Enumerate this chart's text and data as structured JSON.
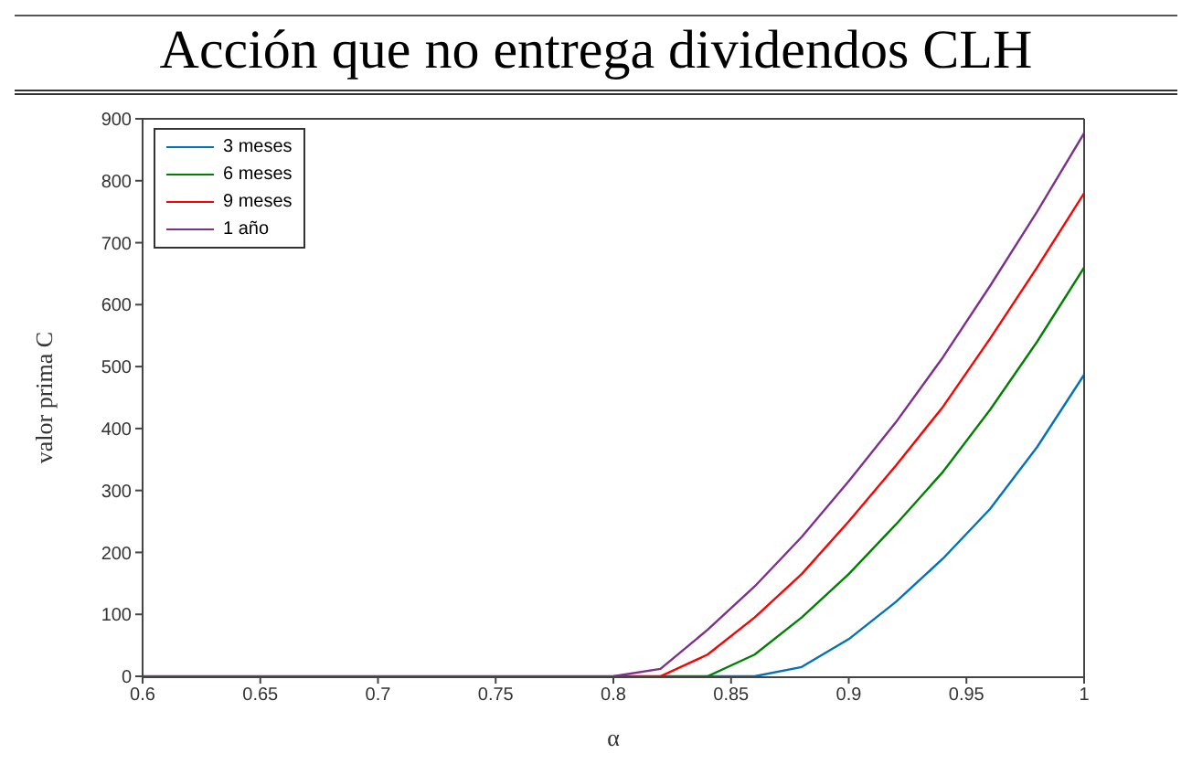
{
  "chart_data": {
    "type": "line",
    "title": "Acción que no entrega dividendos CLH",
    "xlabel": "α",
    "ylabel": "valor prima C",
    "x": [
      0.6,
      0.62,
      0.64,
      0.66,
      0.68,
      0.7,
      0.72,
      0.74,
      0.76,
      0.78,
      0.8,
      0.82,
      0.84,
      0.86,
      0.88,
      0.9,
      0.92,
      0.94,
      0.96,
      0.98,
      1
    ],
    "series": [
      {
        "name": "3 meses",
        "color": "#0072bd",
        "values": [
          null,
          null,
          null,
          null,
          null,
          null,
          null,
          null,
          null,
          null,
          null,
          null,
          0,
          0,
          15,
          60,
          120,
          190,
          270,
          370,
          487
        ]
      },
      {
        "name": "6 meses",
        "color": "#008000",
        "values": [
          null,
          null,
          null,
          null,
          null,
          null,
          null,
          null,
          null,
          null,
          null,
          0,
          0,
          35,
          95,
          165,
          245,
          330,
          430,
          540,
          660
        ]
      },
      {
        "name": "9 meses",
        "color": "#ff0000",
        "values": [
          null,
          null,
          null,
          null,
          null,
          null,
          null,
          null,
          null,
          null,
          0,
          0,
          35,
          95,
          165,
          250,
          340,
          435,
          545,
          660,
          780
        ]
      },
      {
        "name": "1 año",
        "color": "#7e2f8e",
        "values": [
          0,
          0,
          0,
          0,
          0,
          0,
          0,
          0,
          0,
          0,
          0,
          12,
          75,
          145,
          225,
          315,
          410,
          515,
          630,
          750,
          877
        ]
      }
    ],
    "xlim": [
      0.6,
      1
    ],
    "xticks": [
      0.6,
      0.65,
      0.7,
      0.75,
      0.8,
      0.85,
      0.9,
      0.95,
      1
    ],
    "ylim": [
      0,
      900
    ],
    "yticks": [
      0,
      100,
      200,
      300,
      400,
      500,
      600,
      700,
      800,
      900
    ],
    "grid": false,
    "legend": "top left",
    "marker": "none",
    "line_style": "solid"
  }
}
